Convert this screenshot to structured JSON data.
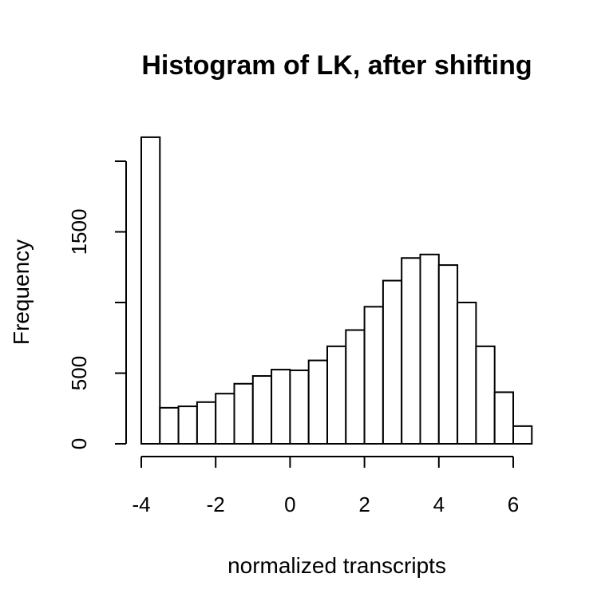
{
  "chart_data": {
    "type": "bar",
    "title": "Histogram of LK, after shifting",
    "xlabel": "normalized transcripts",
    "ylabel": "Frequency",
    "bin_width": 0.5,
    "bins_start": [
      -4,
      -3.5,
      -3,
      -2.5,
      -2,
      -1.5,
      -1,
      -0.5,
      0,
      0.5,
      1,
      1.5,
      2,
      2.5,
      3,
      3.5,
      4,
      4.5,
      5,
      5.5,
      6
    ],
    "values": [
      2170,
      255,
      265,
      295,
      355,
      425,
      480,
      525,
      520,
      590,
      690,
      805,
      970,
      1155,
      1315,
      1340,
      1265,
      1000,
      690,
      365,
      125
    ],
    "xlim": [
      -4,
      6.5
    ],
    "ylim": [
      0,
      2000
    ],
    "x_ticks": [
      -4,
      -2,
      0,
      2,
      4,
      6
    ],
    "x_tick_labels": [
      "-4",
      "-2",
      "0",
      "2",
      "4",
      "6"
    ],
    "y_ticks": [
      0,
      500,
      1000,
      1500,
      2000
    ],
    "y_tick_labels": [
      "0",
      "500",
      "",
      "1500",
      ""
    ],
    "grid": false
  }
}
